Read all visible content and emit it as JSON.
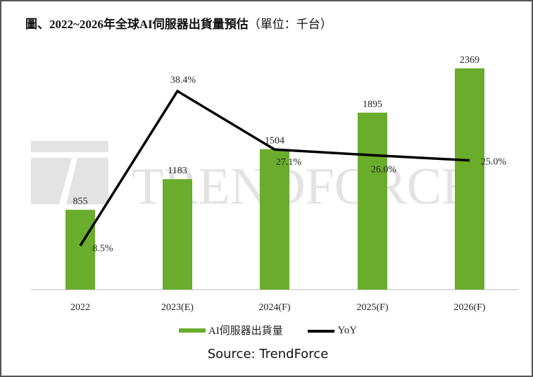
{
  "title": "圖、2022~2026年全球AI伺服器出貨量預估",
  "title_unit": "（單位：千台）",
  "watermark": "TRENDFORCE",
  "source": "Source: TrendForce",
  "chart_data": {
    "type": "bar",
    "title": "圖、2022~2026年全球AI伺服器出貨量預估（單位：千台）",
    "categories": [
      "2022",
      "2023(E)",
      "2024(F)",
      "2025(F)",
      "2026(F)"
    ],
    "series": [
      {
        "name": "AI伺服器出貨量",
        "type": "bar",
        "values": [
          855,
          1183,
          1504,
          1895,
          2369
        ],
        "labels": [
          "855",
          "1183",
          "1504",
          "1895",
          "2369"
        ],
        "color": "#6aac2c"
      },
      {
        "name": "YoY",
        "type": "line",
        "values": [
          8.5,
          38.4,
          27.1,
          26.0,
          25.0
        ],
        "labels": [
          "8.5%",
          "38.4%",
          "27.1%",
          "26.0%",
          "25.0%"
        ],
        "color": "#000000"
      }
    ],
    "ylim_bar": [
      0,
      2369
    ],
    "ylim_line_percent": [
      0,
      42.8
    ],
    "grid": false,
    "legend": "bottom"
  }
}
